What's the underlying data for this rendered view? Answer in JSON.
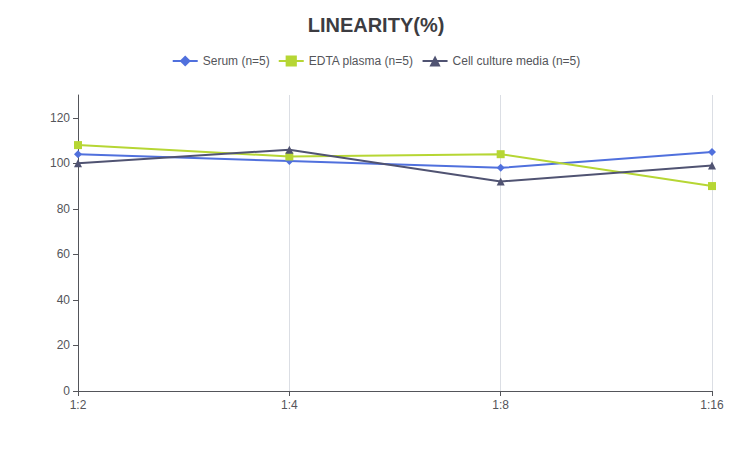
{
  "chart_data": {
    "type": "line",
    "title": "LINEARITY(%)",
    "categories": [
      "1:2",
      "1:4",
      "1:8",
      "1:16"
    ],
    "series": [
      {
        "name": "Serum (n=5)",
        "values": [
          104,
          101,
          98,
          105
        ],
        "marker": "diamond"
      },
      {
        "name": "EDTA plasma (n=5)",
        "values": [
          108,
          103,
          104,
          90
        ],
        "marker": "square"
      },
      {
        "name": "Cell culture media (n=5)",
        "values": [
          100,
          106,
          92,
          99
        ],
        "marker": "triangle"
      }
    ],
    "ylim": [
      0,
      130
    ],
    "yticks": [
      0,
      20,
      40,
      60,
      80,
      100,
      120
    ],
    "grid": true,
    "legend": "top"
  }
}
